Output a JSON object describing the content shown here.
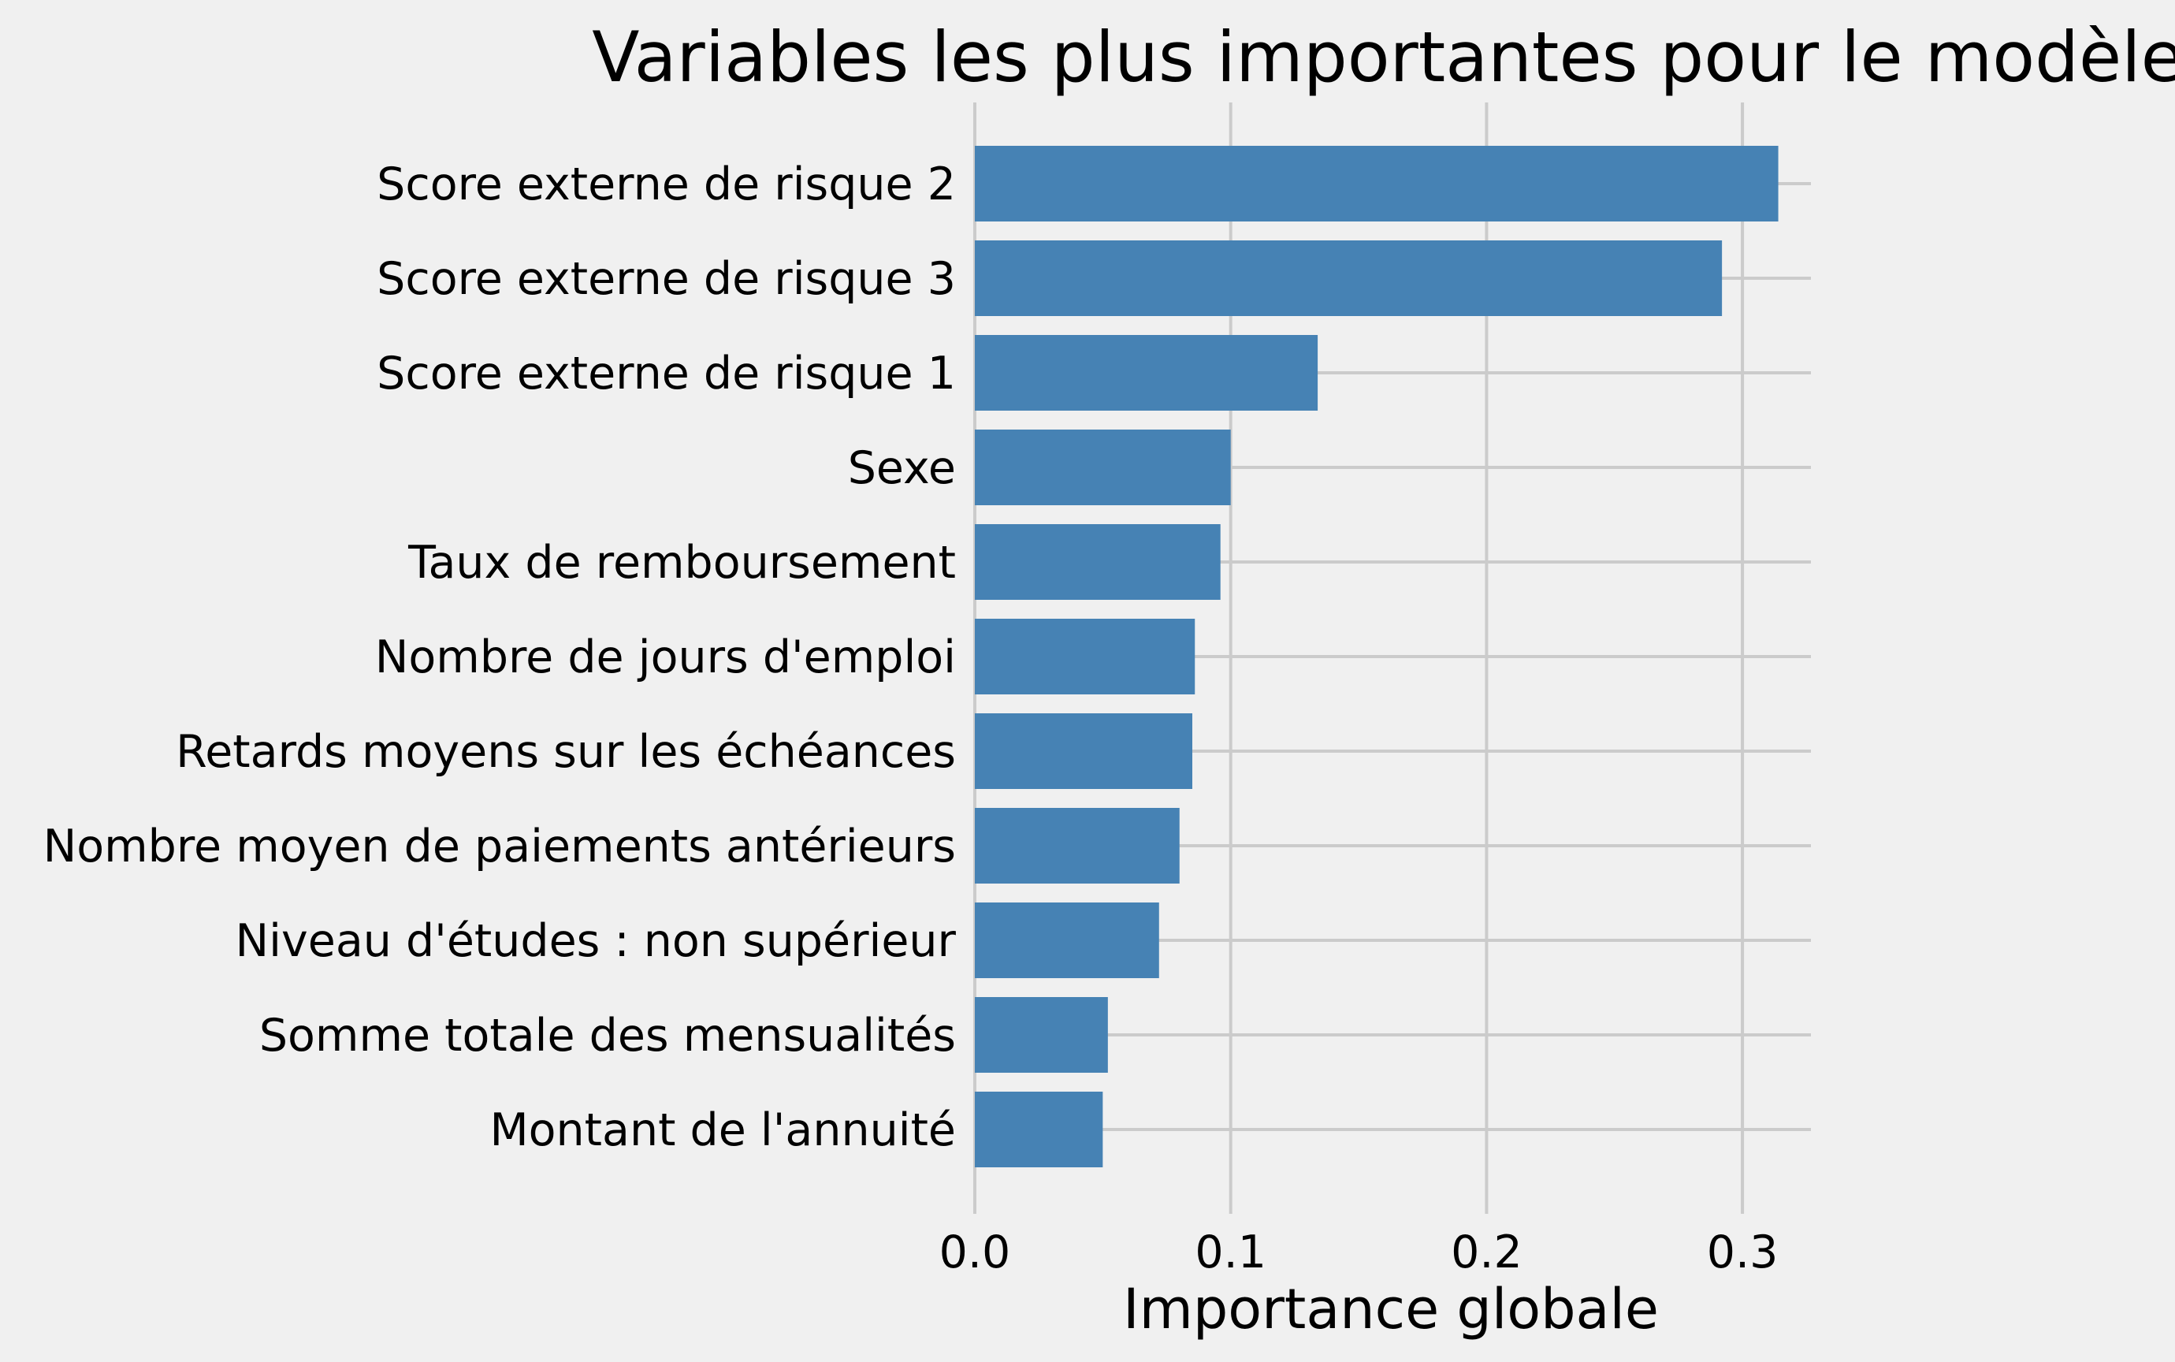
{
  "chart_data": {
    "type": "bar",
    "orientation": "horizontal",
    "title": "Variables les plus importantes pour le modèle",
    "xlabel": "Importance globale",
    "ylabel": "",
    "xlim": [
      0.0,
      0.328
    ],
    "xticks": [
      "0.0",
      "0.1",
      "0.2",
      "0.3"
    ],
    "xtick_values": [
      0.0,
      0.1,
      0.2,
      0.3
    ],
    "grid": true,
    "bar_color": "#4682b4",
    "background_color": "#f0f0f0",
    "grid_color": "#cbcbcb",
    "categories": [
      "Score externe de risque 2",
      "Score externe de risque 3",
      "Score externe de risque 1",
      "Sexe",
      "Taux de remboursement",
      "Nombre de jours d'emploi",
      "Retards moyens sur les échéances",
      "Nombre moyen de paiements antérieurs",
      "Niveau d'études : non supérieur",
      "Somme totale des mensualités",
      "Montant de l'annuité"
    ],
    "values": [
      0.314,
      0.292,
      0.134,
      0.1,
      0.096,
      0.086,
      0.085,
      0.08,
      0.072,
      0.052,
      0.05
    ]
  }
}
